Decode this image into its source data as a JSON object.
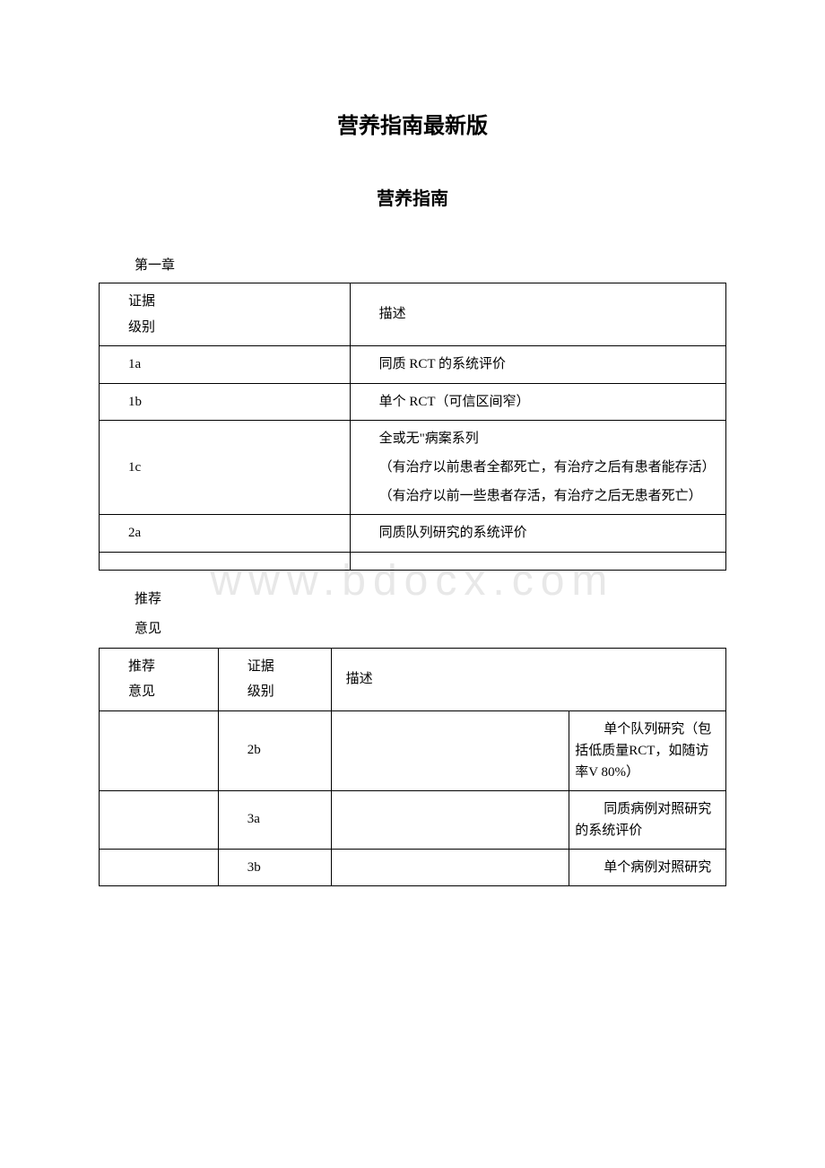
{
  "titles": {
    "main": "营养指南最新版",
    "sub": "营养指南"
  },
  "chapter": "第一章",
  "watermark": "www.bdocx.com",
  "table1": {
    "header": {
      "col1_line1": "证据",
      "col1_line2": "级别",
      "col2": "描述"
    },
    "rows": [
      {
        "level": "1a",
        "desc": "同质 RCT 的系统评价"
      },
      {
        "level": "1b",
        "desc": "单个 RCT（可信区间窄）"
      }
    ],
    "row1c": {
      "level": "1c",
      "desc_lines": [
        "全或无\"病案系列",
        "（有治疗以前患者全都死亡，有治疗之后有患者能存活）",
        "（有治疗以前一些患者存活，有治疗之后无患者死亡）"
      ]
    },
    "row2a": {
      "level": "2a",
      "desc": "同质队列研究的系统评价"
    }
  },
  "intermediate": {
    "line1": "推荐",
    "line2": "意见"
  },
  "table2": {
    "header": {
      "c1_line1": "推荐",
      "c1_line2": "意见",
      "c2_line1": "证据",
      "c2_line2": "级别",
      "c3": "描述"
    },
    "rows": [
      {
        "c1": "",
        "c2": "2b",
        "c3": "",
        "c4": "单个队列研究（包括低质量RCT，如随访率V 80%）"
      },
      {
        "c1": "",
        "c2": "3a",
        "c3": "",
        "c4": "同质病例对照研究的系统评价"
      },
      {
        "c1": "",
        "c2": "3b",
        "c3": "",
        "c4": "单个病例对照研究"
      }
    ]
  },
  "colors": {
    "text": "#000000",
    "border": "#000000",
    "background": "#ffffff",
    "watermark": "#e8e8e8"
  },
  "typography": {
    "title_main_size": 24,
    "title_sub_size": 20,
    "body_size": 15,
    "font_family": "SimSun"
  }
}
